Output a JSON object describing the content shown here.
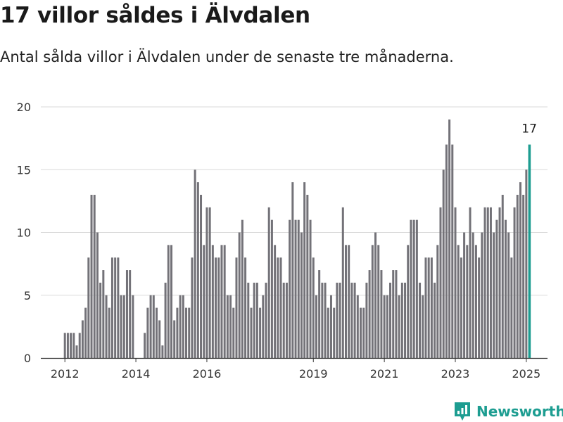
{
  "header": {
    "title": "17 villor såldes i Älvdalen",
    "subtitle": "Antal sålda villor i Älvdalen under de senaste tre månaderna."
  },
  "brand": {
    "name": "Newsworthy",
    "icon": "newsworthy-logo-icon",
    "color": "#1d9d91"
  },
  "colors": {
    "bar": "#737278",
    "highlight": "#1d9d91",
    "grid": "#d9d9d9",
    "axis": "#333333"
  },
  "chart_data": {
    "type": "bar",
    "title": "17 villor såldes i Älvdalen",
    "subtitle": "Antal sålda villor i Älvdalen under de senaste tre månaderna.",
    "xlabel": "",
    "ylabel": "",
    "ylim": [
      0,
      20
    ],
    "yticks": [
      0,
      5,
      10,
      15,
      20
    ],
    "xticks": [
      "2012",
      "2014",
      "2016",
      "2019",
      "2021",
      "2023",
      "2025"
    ],
    "grid": true,
    "legend": "none",
    "start": "2012-01",
    "frequency": "monthly",
    "values": [
      2,
      2,
      2,
      2,
      1,
      2,
      3,
      4,
      8,
      13,
      13,
      10,
      6,
      7,
      5,
      4,
      8,
      8,
      8,
      5,
      5,
      7,
      7,
      5,
      0,
      0,
      0,
      2,
      4,
      5,
      5,
      4,
      3,
      1,
      6,
      9,
      9,
      3,
      4,
      5,
      5,
      4,
      4,
      8,
      15,
      14,
      13,
      9,
      12,
      12,
      9,
      8,
      8,
      9,
      9,
      5,
      5,
      4,
      8,
      10,
      11,
      8,
      6,
      4,
      6,
      6,
      4,
      5,
      6,
      12,
      11,
      9,
      8,
      8,
      6,
      6,
      11,
      14,
      11,
      11,
      10,
      14,
      13,
      11,
      8,
      5,
      7,
      6,
      6,
      4,
      5,
      4,
      6,
      6,
      12,
      9,
      9,
      6,
      6,
      5,
      4,
      4,
      6,
      7,
      9,
      10,
      9,
      7,
      5,
      5,
      6,
      7,
      7,
      5,
      6,
      6,
      9,
      11,
      11,
      11,
      6,
      5,
      8,
      8,
      8,
      6,
      9,
      12,
      15,
      17,
      19,
      17,
      12,
      9,
      8,
      10,
      9,
      12,
      10,
      9,
      8,
      10,
      12,
      12,
      12,
      10,
      11,
      12,
      13,
      11,
      10,
      8,
      12,
      13,
      14,
      13,
      15,
      17
    ],
    "highlight": {
      "label": "17",
      "value": 17,
      "date": "2025-02"
    }
  }
}
